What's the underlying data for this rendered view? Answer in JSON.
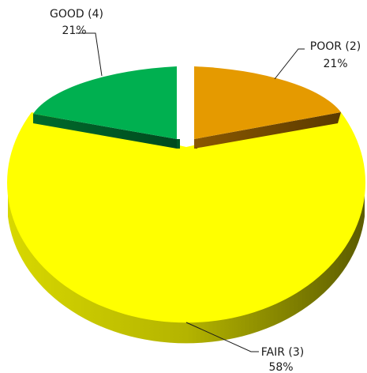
{
  "chart_data": {
    "type": "pie",
    "style": "3d-exploded",
    "slices": [
      {
        "key": "poor",
        "label": "POOR (2)",
        "percent_label": "21%",
        "value": 21,
        "color": "#e59a00"
      },
      {
        "key": "fair",
        "label": "FAIR (3)",
        "percent_label": "58%",
        "value": 58,
        "color": "#ffff00"
      },
      {
        "key": "good",
        "label": "GOOD (4)",
        "percent_label": "21%",
        "value": 21,
        "color": "#00b050"
      }
    ],
    "legend": "none"
  }
}
